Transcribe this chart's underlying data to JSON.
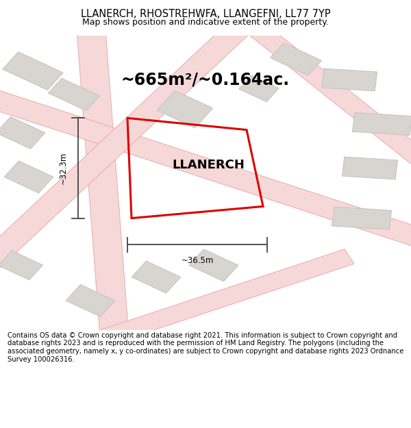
{
  "title": "LLANERCH, RHOSTREHWFA, LLANGEFNI, LL77 7YP",
  "subtitle": "Map shows position and indicative extent of the property.",
  "area_label": "~665m²/~0.164ac.",
  "property_name": "LLANERCH",
  "dim_width": "~36.5m",
  "dim_height": "~32.3m",
  "footer": "Contains OS data © Crown copyright and database right 2021. This information is subject to Crown copyright and database rights 2023 and is reproduced with the permission of HM Land Registry. The polygons (including the associated geometry, namely x, y co-ordinates) are subject to Crown copyright and database rights 2023 Ordnance Survey 100026316.",
  "bg_color": "#f0eeec",
  "map_bg": "#f0eeec",
  "road_stroke": "#e8aaaa",
  "road_fill": "#f7d8d8",
  "building_fill": "#d8d5d0",
  "building_edge": "#c8c5c0",
  "property_color": "#dd0000",
  "dim_line_color": "#444444",
  "footer_bg": "#ffffff",
  "title_fontsize": 10.5,
  "subtitle_fontsize": 9,
  "area_fontsize": 17,
  "property_label_fontsize": 13,
  "dim_fontsize": 8.5,
  "footer_fontsize": 7.2
}
